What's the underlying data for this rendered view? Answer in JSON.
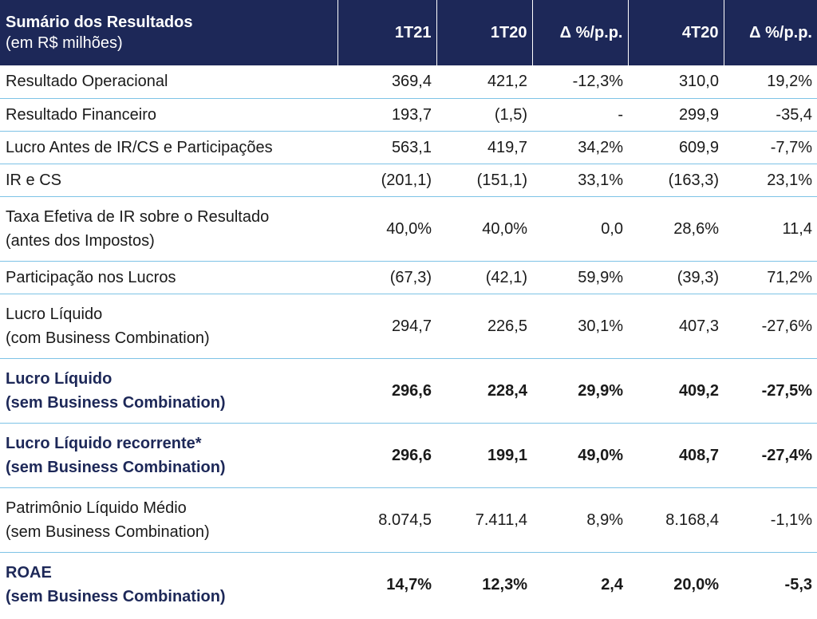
{
  "header": {
    "title": "Sumário dos Resultados",
    "subtitle": "(em R$ milhões)",
    "columns": [
      "1T21",
      "1T20",
      "Δ %/p.p.",
      "4T20",
      "Δ %/p.p."
    ]
  },
  "rows": [
    {
      "label": [
        "Resultado Operacional"
      ],
      "values": [
        "369,4",
        "421,2",
        "-12,3%",
        "310,0",
        "19,2%"
      ],
      "bold": false
    },
    {
      "label": [
        "Resultado Financeiro"
      ],
      "values": [
        "193,7",
        "(1,5)",
        "-",
        "299,9",
        "-35,4"
      ],
      "bold": false
    },
    {
      "label": [
        "Lucro Antes de IR/CS e Participações"
      ],
      "values": [
        "563,1",
        "419,7",
        "34,2%",
        "609,9",
        "-7,7%"
      ],
      "bold": false
    },
    {
      "label": [
        "IR e CS"
      ],
      "values": [
        "(201,1)",
        "(151,1)",
        "33,1%",
        "(163,3)",
        "23,1%"
      ],
      "bold": false
    },
    {
      "label": [
        "Taxa Efetiva de IR sobre o Resultado",
        "(antes dos Impostos)"
      ],
      "values": [
        "40,0%",
        "40,0%",
        "0,0",
        "28,6%",
        "11,4"
      ],
      "bold": false
    },
    {
      "label": [
        "Participação nos Lucros"
      ],
      "values": [
        "(67,3)",
        "(42,1)",
        "59,9%",
        "(39,3)",
        "71,2%"
      ],
      "bold": false
    },
    {
      "label": [
        "Lucro Líquido",
        "(com Business Combination)"
      ],
      "values": [
        "294,7",
        "226,5",
        "30,1%",
        "407,3",
        "-27,6%"
      ],
      "bold": false
    },
    {
      "label": [
        "Lucro Líquido",
        "(sem Business Combination)"
      ],
      "values": [
        "296,6",
        "228,4",
        "29,9%",
        "409,2",
        "-27,5%"
      ],
      "bold": true
    },
    {
      "label": [
        "Lucro Líquido recorrente*",
        "(sem Business Combination)"
      ],
      "values": [
        "296,6",
        "199,1",
        "49,0%",
        "408,7",
        "-27,4%"
      ],
      "bold": true
    },
    {
      "label": [
        "Patrimônio Líquido Médio",
        "(sem Business Combination)"
      ],
      "values": [
        "8.074,5",
        "7.411,4",
        "8,9%",
        "8.168,4",
        "-1,1%"
      ],
      "bold": false
    },
    {
      "label": [
        "ROAE",
        "(sem Business Combination)"
      ],
      "values": [
        "14,7%",
        "12,3%",
        "2,4",
        "20,0%",
        "-5,3"
      ],
      "bold": true
    }
  ],
  "colors": {
    "header_bg": "#1d2858",
    "row_divider": "#7ec3e6",
    "bold_label": "#1d2858"
  }
}
